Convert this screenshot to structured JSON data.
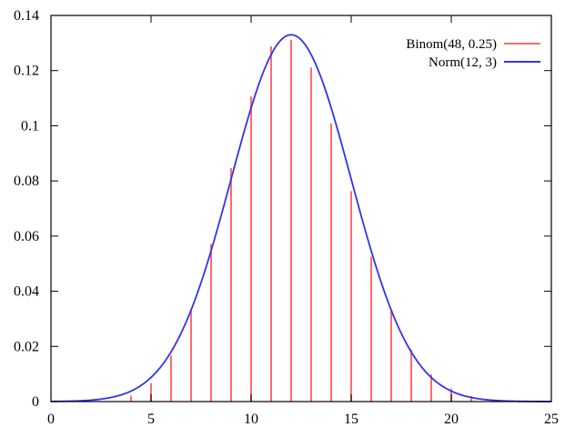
{
  "chart_data": {
    "type": "bar",
    "title": "",
    "xlabel": "",
    "ylabel": "",
    "xlim": [
      0,
      25
    ],
    "ylim": [
      0,
      0.14
    ],
    "xticks": [
      "0",
      "5",
      "10",
      "15",
      "20",
      "25"
    ],
    "yticks": [
      "0",
      "0.02",
      "0.04",
      "0.06",
      "0.08",
      "0.1",
      "0.12",
      "0.14"
    ],
    "legend_position": "top-right",
    "grid": false,
    "series": [
      {
        "name": "Binom(48, 0.25)",
        "kind": "impulse",
        "color": "#ff6b6b",
        "x": [
          4,
          5,
          6,
          7,
          8,
          9,
          10,
          11,
          12,
          13,
          14,
          15,
          16,
          17,
          18,
          19,
          20,
          21
        ],
        "y": [
          0.0021,
          0.0067,
          0.0167,
          0.0334,
          0.0571,
          0.0846,
          0.1106,
          0.1288,
          0.1312,
          0.1211,
          0.1009,
          0.0763,
          0.0525,
          0.0329,
          0.0189,
          0.0098,
          0.0047,
          0.002
        ]
      },
      {
        "name": "Norm(12, 3)",
        "kind": "curve",
        "color": "#3333ee",
        "mean": 12,
        "sd": 3
      }
    ]
  }
}
